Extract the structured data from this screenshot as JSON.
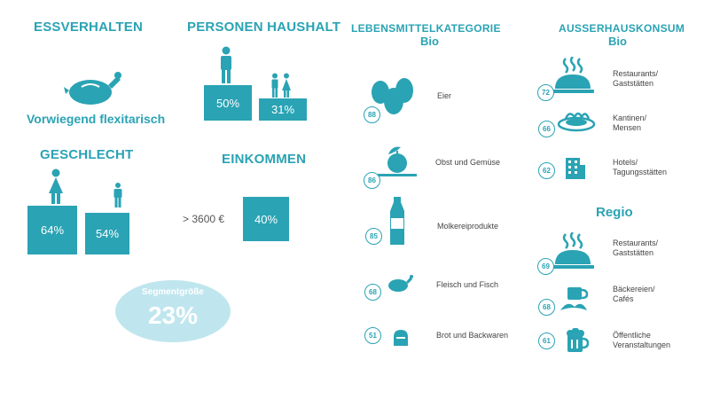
{
  "colors": {
    "accent": "#2aa3b4",
    "ellipse": "#bfe6ee"
  },
  "essverhalten": {
    "title": "ESSVERHALTEN",
    "label": "Vorwiegend flexitarisch",
    "icon": "chicken-icon"
  },
  "personen_haushalt": {
    "title": "PERSONEN HAUSHALT",
    "bars": [
      {
        "value": "50%",
        "level": 50,
        "icon": "single-person-icon"
      },
      {
        "value": "31%",
        "level": 31,
        "icon": "couple-icon"
      }
    ]
  },
  "geschlecht": {
    "title": "GESCHLECHT",
    "bars": [
      {
        "value": "64%",
        "level": 64,
        "icon": "female-icon"
      },
      {
        "value": "54%",
        "level": 54,
        "icon": "male-icon"
      }
    ]
  },
  "einkommen": {
    "title": "EINKOMMEN",
    "threshold": "> 3600 €",
    "value": "40%"
  },
  "segment": {
    "label": "Segmentgröße",
    "value": "23%"
  },
  "lebensmittel": {
    "title": "LEBENSMITTELKATEGORIE",
    "subtitle": "Bio",
    "items": [
      {
        "score": "88",
        "label": "Eier",
        "icon": "eggs-icon"
      },
      {
        "score": "86",
        "label": "Obst und Gemüse",
        "icon": "apple-icon"
      },
      {
        "score": "85",
        "label": "Molkereiprodukte",
        "icon": "bottle-icon"
      },
      {
        "score": "68",
        "label": "Fleisch und Fisch",
        "icon": "chicken-icon"
      },
      {
        "score": "51",
        "label": "Brot und Backwaren",
        "icon": "bread-icon"
      }
    ]
  },
  "ausserhaus": {
    "title": "AUSSERHAUSKONSUM",
    "subtitle": "Bio",
    "items": [
      {
        "score": "72",
        "label": "Restaurants/\nGaststätten",
        "icon": "cloche-icon"
      },
      {
        "score": "66",
        "label": "Kantinen/\nMensen",
        "icon": "noodle-plate-icon"
      },
      {
        "score": "62",
        "label": "Hotels/\nTagungsstätten",
        "icon": "hotel-icon"
      }
    ]
  },
  "regio": {
    "title": "Regio",
    "items": [
      {
        "score": "69",
        "label": "Restaurants/\nGaststätten",
        "icon": "cloche-icon"
      },
      {
        "score": "68",
        "label": "Bäckereien/\nCafés",
        "icon": "coffee-croissant-icon"
      },
      {
        "score": "61",
        "label": "Öffentliche\nVeranstaltungen",
        "icon": "beer-mug-icon"
      }
    ]
  }
}
